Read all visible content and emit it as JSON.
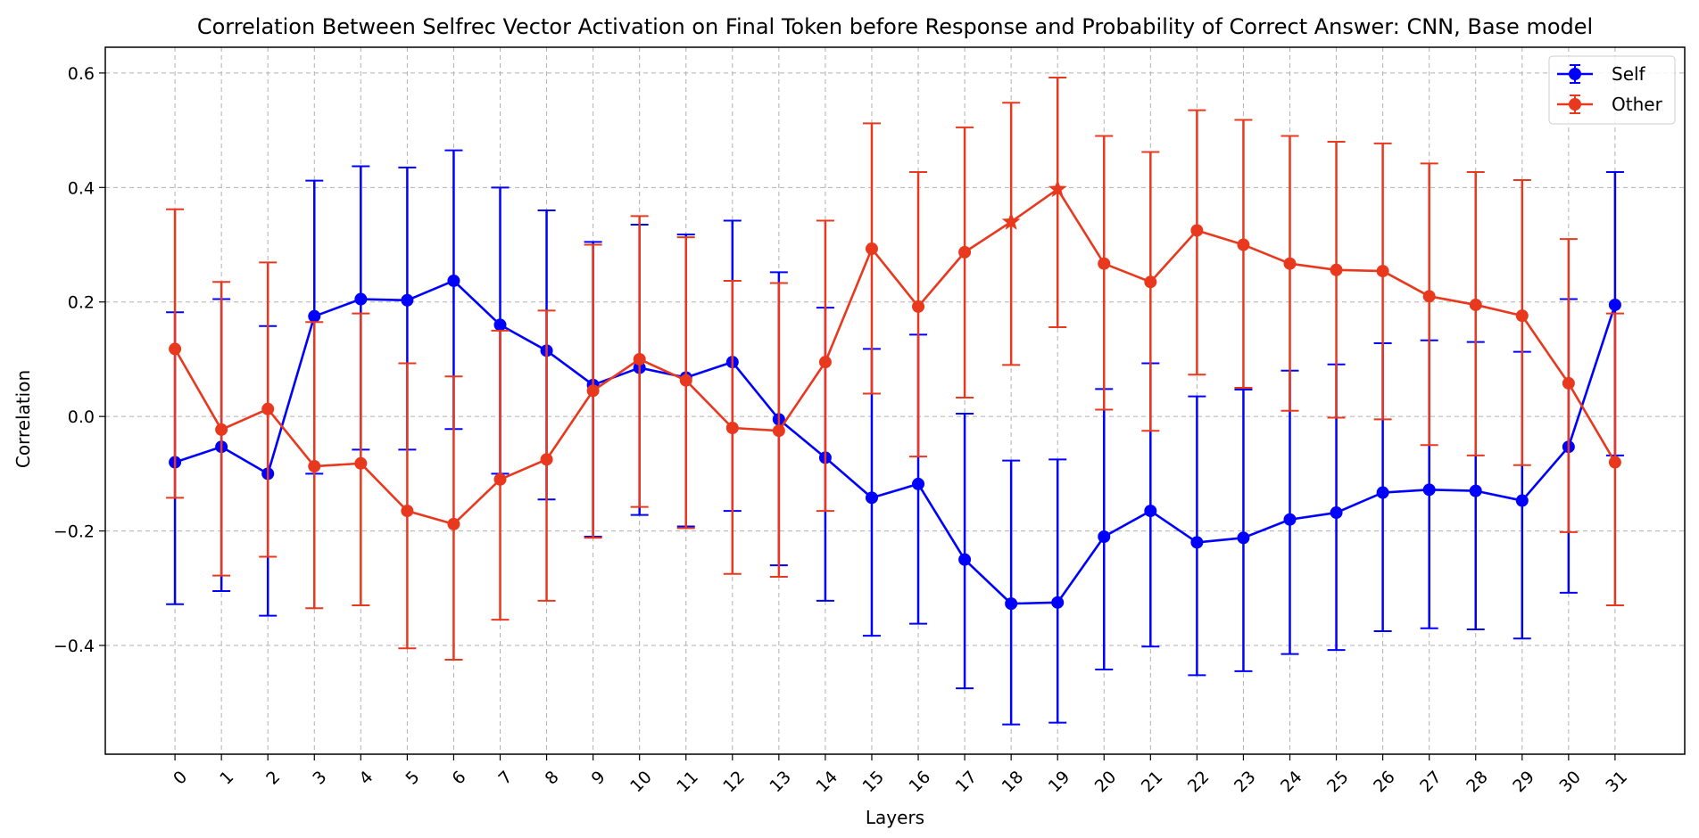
{
  "chart_data": {
    "type": "line",
    "title": "Correlation Between Selfrec Vector Activation on Final Token before Response and Probability of Correct Answer: CNN, Base model",
    "xlabel": "Layers",
    "ylabel": "Correlation",
    "x": [
      0,
      1,
      2,
      3,
      4,
      5,
      6,
      7,
      8,
      9,
      10,
      11,
      12,
      13,
      14,
      15,
      16,
      17,
      18,
      19,
      20,
      21,
      22,
      23,
      24,
      25,
      26,
      27,
      28,
      29,
      30,
      31
    ],
    "x_tick_labels": [
      "0",
      "1",
      "2",
      "3",
      "4",
      "5",
      "6",
      "7",
      "8",
      "9",
      "10",
      "11",
      "12",
      "13",
      "14",
      "15",
      "16",
      "17",
      "18",
      "19",
      "20",
      "21",
      "22",
      "23",
      "24",
      "25",
      "26",
      "27",
      "28",
      "29",
      "30",
      "31"
    ],
    "y_ticks": [
      -0.4,
      -0.2,
      0.0,
      0.2,
      0.4,
      0.6
    ],
    "y_tick_labels": [
      "−0.4",
      "−0.2",
      "0.0",
      "0.2",
      "0.4",
      "0.6"
    ],
    "xlim": [
      -1.5,
      32.5
    ],
    "ylim": [
      -0.59,
      0.645
    ],
    "grid": true,
    "legend_position": "top-right",
    "series": [
      {
        "name": "Self",
        "color": "#0000ff",
        "values": [
          -0.08,
          -0.053,
          -0.1,
          0.175,
          0.205,
          0.203,
          0.237,
          0.16,
          0.115,
          0.055,
          0.085,
          0.068,
          0.095,
          -0.005,
          -0.072,
          -0.142,
          -0.118,
          -0.25,
          -0.327,
          -0.325,
          -0.21,
          -0.165,
          -0.22,
          -0.212,
          -0.18,
          -0.168,
          -0.133,
          -0.128,
          -0.13,
          -0.147,
          -0.053,
          0.195
        ],
        "err_low": [
          -0.328,
          -0.305,
          -0.348,
          -0.1,
          -0.058,
          -0.058,
          -0.022,
          -0.1,
          -0.145,
          -0.21,
          -0.172,
          -0.192,
          -0.165,
          -0.26,
          -0.322,
          -0.383,
          -0.362,
          -0.475,
          -0.538,
          -0.535,
          -0.442,
          -0.402,
          -0.452,
          -0.445,
          -0.415,
          -0.408,
          -0.375,
          -0.37,
          -0.372,
          -0.388,
          -0.308,
          -0.068
        ],
        "err_high": [
          0.182,
          0.205,
          0.158,
          0.412,
          0.437,
          0.435,
          0.465,
          0.4,
          0.36,
          0.305,
          0.335,
          0.318,
          0.342,
          0.252,
          0.19,
          0.118,
          0.143,
          0.005,
          -0.077,
          -0.075,
          0.048,
          0.093,
          0.035,
          0.047,
          0.08,
          0.091,
          0.128,
          0.133,
          0.13,
          0.113,
          0.205,
          0.427
        ],
        "star_indices": []
      },
      {
        "name": "Other",
        "color": "#e8391f",
        "values": [
          0.118,
          -0.023,
          0.013,
          -0.087,
          -0.082,
          -0.165,
          -0.188,
          -0.11,
          -0.075,
          0.045,
          0.1,
          0.063,
          -0.02,
          -0.025,
          0.095,
          0.293,
          0.192,
          0.287,
          0.34,
          0.397,
          0.267,
          0.235,
          0.325,
          0.3,
          0.267,
          0.256,
          0.254,
          0.21,
          0.195,
          0.176,
          0.058,
          -0.08
        ],
        "err_low": [
          -0.142,
          -0.278,
          -0.245,
          -0.335,
          -0.33,
          -0.405,
          -0.425,
          -0.355,
          -0.322,
          -0.212,
          -0.158,
          -0.195,
          -0.275,
          -0.28,
          -0.165,
          0.04,
          -0.07,
          0.033,
          0.09,
          0.156,
          0.012,
          -0.025,
          0.073,
          0.05,
          0.01,
          -0.002,
          -0.005,
          -0.05,
          -0.068,
          -0.085,
          -0.202,
          -0.33
        ],
        "err_high": [
          0.362,
          0.235,
          0.269,
          0.165,
          0.18,
          0.093,
          0.07,
          0.15,
          0.185,
          0.3,
          0.35,
          0.313,
          0.237,
          0.233,
          0.342,
          0.512,
          0.427,
          0.505,
          0.548,
          0.592,
          0.49,
          0.462,
          0.535,
          0.518,
          0.49,
          0.48,
          0.477,
          0.442,
          0.427,
          0.413,
          0.31,
          0.18
        ],
        "star_indices": [
          18,
          19
        ]
      }
    ]
  }
}
